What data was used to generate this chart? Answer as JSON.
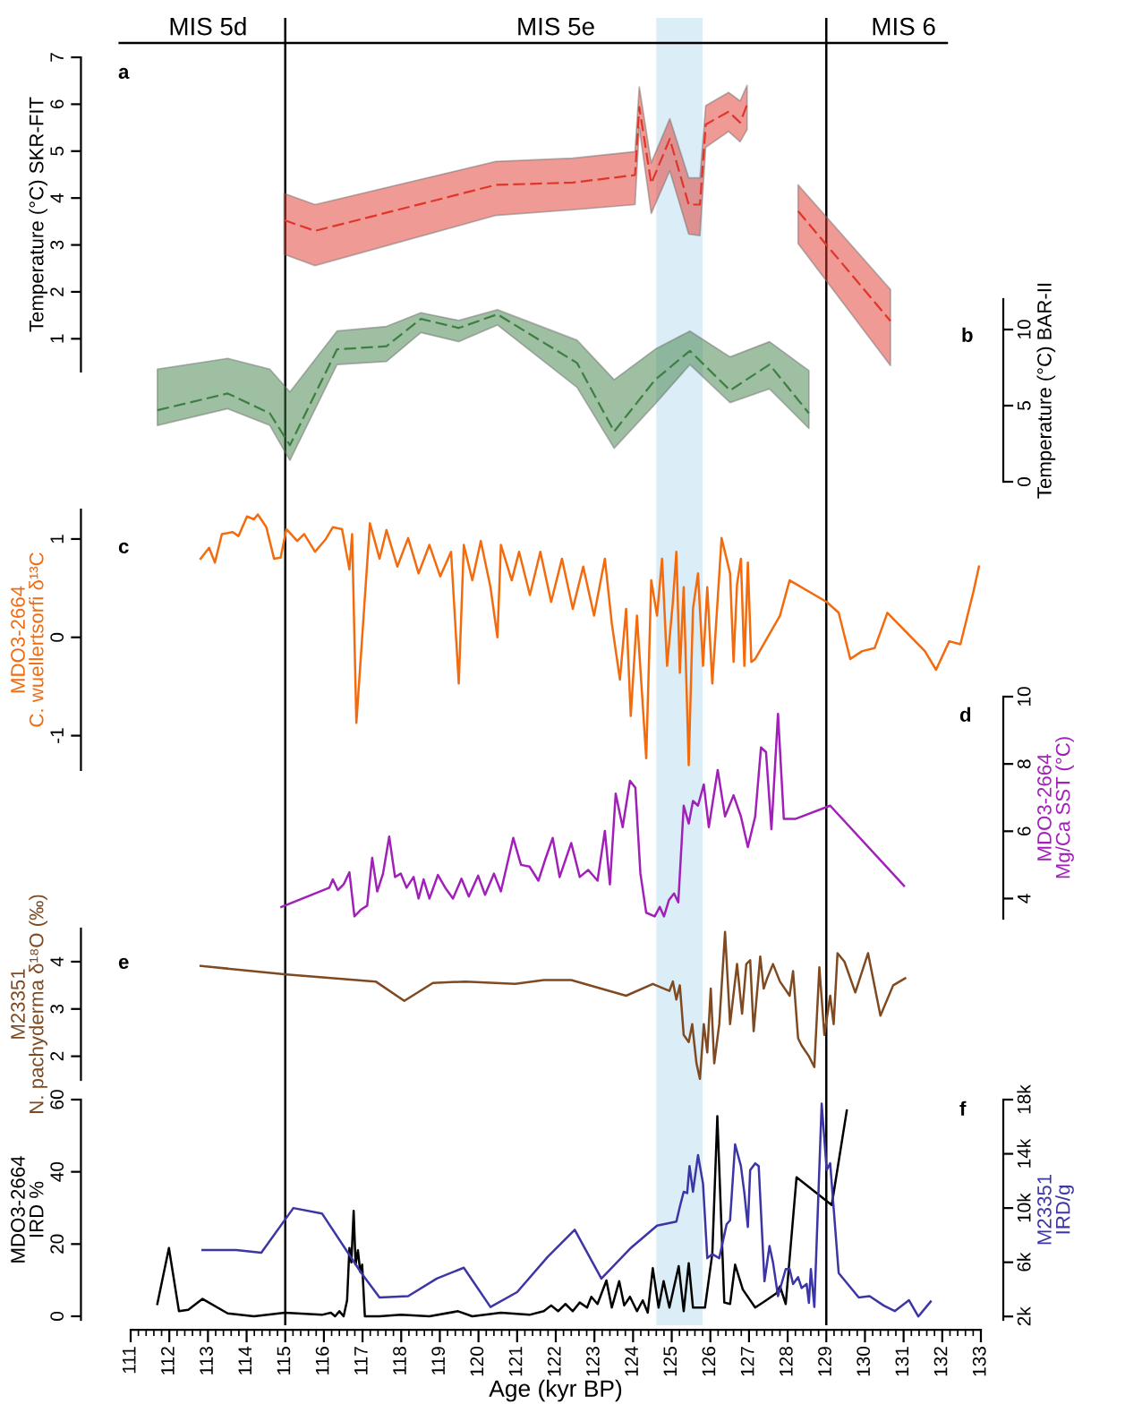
{
  "chart_data": [
    {
      "type": "line",
      "ylabel": "Temperature (°C) SKR-FIT",
      "annotations": [
        "a",
        "MIS 5d",
        "MIS 5e",
        "MIS 6"
      ],
      "xlim": [
        111,
        133
      ],
      "ylim": [
        0.3,
        7
      ],
      "yticks": [
        1,
        2,
        3,
        4,
        5,
        6,
        7
      ],
      "tick_labels": "y",
      "legend": false,
      "grid": false,
      "marker": "none",
      "line_style": "dashed",
      "ref_lines": [
        {
          "axis": "x",
          "value": 115,
          "color": "#000000"
        },
        {
          "axis": "x",
          "value": 129,
          "color": "#000000"
        }
      ],
      "bands": [
        {
          "axis": "x",
          "from": 124.6,
          "to": 125.8,
          "color": "#dbedf7"
        }
      ],
      "series": [
        {
          "color": "#e0352b",
          "x": [
            114.97,
            115.77,
            120.45,
            122.44,
            124.05,
            124.16,
            124.47,
            124.95,
            125.44,
            125.73,
            125.88,
            126.47,
            126.77,
            126.95,
            127.6,
            128.27,
            130.66
          ],
          "values": [
            3.53,
            3.3,
            4.28,
            4.33,
            4.49,
            5.94,
            4.31,
            5.26,
            3.86,
            3.86,
            5.57,
            5.84,
            5.61,
            5.99,
            null,
            3.72,
            1.38
          ],
          "lower": [
            2.8,
            2.56,
            3.63,
            3.75,
            3.86,
            5.5,
            3.67,
            4.58,
            3.23,
            3.2,
            5.08,
            5.42,
            5.2,
            5.46,
            null,
            3.03,
            0.43
          ],
          "upper": [
            4.1,
            3.86,
            4.78,
            4.85,
            4.99,
            6.37,
            4.75,
            5.69,
            4.43,
            4.43,
            5.97,
            6.25,
            6.07,
            6.4,
            null,
            4.28,
            2.05
          ]
        }
      ]
    },
    {
      "type": "line",
      "ylabel": "Temperature (°C) BAR-II",
      "annotations": [
        "b"
      ],
      "xlim": [
        111,
        133
      ],
      "ylim": [
        0,
        12
      ],
      "yticks": [
        0,
        5,
        10
      ],
      "tick_labels": "y",
      "legend": false,
      "grid": false,
      "marker": "none",
      "line_style": "dashed",
      "series": [
        {
          "color": "#3d7f43",
          "x": [
            111.69,
            113.51,
            114.6,
            115.12,
            116.34,
            117.62,
            118.51,
            119.49,
            120.49,
            122.55,
            123.51,
            124.57,
            125.47,
            126.51,
            127.53,
            128.55
          ],
          "values": [
            4.7,
            5.8,
            4.5,
            2.4,
            8.7,
            8.9,
            10.7,
            10.1,
            11.0,
            7.8,
            3.3,
            6.7,
            8.6,
            6.0,
            7.7,
            4.5
          ],
          "lower": [
            3.7,
            4.8,
            3.7,
            1.4,
            7.7,
            7.9,
            9.8,
            9.2,
            10.3,
            6.2,
            2.2,
            5.1,
            7.7,
            5.2,
            6.1,
            3.5
          ],
          "upper": [
            7.4,
            8.1,
            7.4,
            5.9,
            9.9,
            10.2,
            11.1,
            10.6,
            11.3,
            9.3,
            6.7,
            8.7,
            9.9,
            8.2,
            9.2,
            7.3
          ]
        }
      ]
    },
    {
      "type": "line",
      "ylabel": "MDO3-2664\nC. wuellertsorfi δ¹³C",
      "annotations": [
        "c"
      ],
      "xlim": [
        111,
        133
      ],
      "ylim": [
        -1.35,
        1.3
      ],
      "yticks": [
        -1,
        0,
        1
      ],
      "tick_labels": "y",
      "legend": false,
      "grid": false,
      "marker": "none",
      "line_style": "solid",
      "series": [
        {
          "color": "#f26b0f",
          "x": [
            112.81,
            113.03,
            113.18,
            113.36,
            113.64,
            113.79,
            114.01,
            114.19,
            114.29,
            114.51,
            114.71,
            114.88,
            115.03,
            115.31,
            115.49,
            115.77,
            116.05,
            116.23,
            116.47,
            116.66,
            116.73,
            116.84,
            117.19,
            117.44,
            117.62,
            117.9,
            118.18,
            118.45,
            118.73,
            119.01,
            119.29,
            119.49,
            119.62,
            119.84,
            120.06,
            120.31,
            120.49,
            120.58,
            120.86,
            121.05,
            121.33,
            121.6,
            121.88,
            122.16,
            122.44,
            122.71,
            122.99,
            123.27,
            123.45,
            123.66,
            123.82,
            123.94,
            124.1,
            124.34,
            124.47,
            124.62,
            124.75,
            124.88,
            125.03,
            125.12,
            125.21,
            125.31,
            125.44,
            125.55,
            125.68,
            125.81,
            125.92,
            126.05,
            126.29,
            126.51,
            126.6,
            126.69,
            126.79,
            126.88,
            126.97,
            127.06,
            127.16,
            127.8,
            128.05,
            129.01,
            129.32,
            129.62,
            129.93,
            130.25,
            130.58,
            131.55,
            131.84,
            132.18,
            132.47,
            132.81,
            132.95
          ],
          "values": [
            0.8,
            0.91,
            0.76,
            1.05,
            1.07,
            1.03,
            1.23,
            1.2,
            1.25,
            1.12,
            0.8,
            0.81,
            1.1,
            0.98,
            1.05,
            0.87,
            1.0,
            1.12,
            1.1,
            0.69,
            1.05,
            -0.87,
            1.16,
            0.8,
            1.09,
            0.72,
            1.01,
            0.65,
            0.94,
            0.62,
            0.87,
            -0.47,
            0.94,
            0.58,
            0.98,
            0.51,
            0.0,
            0.94,
            0.58,
            0.87,
            0.43,
            0.87,
            0.36,
            0.8,
            0.29,
            0.72,
            0.22,
            0.8,
            0.14,
            -0.43,
            0.29,
            -0.8,
            0.22,
            -1.23,
            0.58,
            0.22,
            0.8,
            -0.29,
            0.36,
            0.87,
            -0.36,
            0.51,
            -1.3,
            0.29,
            0.65,
            -0.29,
            0.51,
            -0.47,
            1.01,
            0.65,
            -0.25,
            0.54,
            0.8,
            -0.29,
            0.76,
            -0.25,
            -0.22,
            0.22,
            0.58,
            0.36,
            0.25,
            -0.22,
            -0.14,
            -0.11,
            0.25,
            -0.14,
            -0.33,
            -0.04,
            -0.07,
            0.47,
            0.72
          ]
        }
      ]
    },
    {
      "type": "line",
      "ylabel": "MDO3-2664\nMg/Ca SST (°C)",
      "annotations": [
        "d"
      ],
      "xlim": [
        111,
        133
      ],
      "ylim": [
        3.4,
        10
      ],
      "yticks": [
        4,
        6,
        8,
        10
      ],
      "tick_labels": "y",
      "legend": false,
      "grid": false,
      "marker": "none",
      "line_style": "solid",
      "series": [
        {
          "color": "#a020b8",
          "x": [
            114.9,
            116.14,
            116.23,
            116.36,
            116.51,
            116.66,
            116.79,
            116.97,
            117.12,
            117.25,
            117.38,
            117.53,
            117.69,
            117.84,
            117.99,
            118.14,
            118.32,
            118.45,
            118.58,
            118.73,
            118.95,
            119.14,
            119.34,
            119.56,
            119.75,
            119.99,
            120.17,
            120.4,
            120.58,
            120.9,
            121.1,
            121.32,
            121.55,
            121.73,
            121.92,
            122.1,
            122.4,
            122.62,
            122.84,
            123.08,
            123.27,
            123.4,
            123.55,
            123.73,
            123.92,
            124.06,
            124.19,
            124.34,
            124.56,
            124.69,
            124.8,
            124.93,
            125.06,
            125.17,
            125.31,
            125.44,
            125.55,
            125.68,
            125.83,
            125.96,
            126.19,
            126.38,
            126.6,
            126.79,
            126.97,
            127.16,
            127.31,
            127.44,
            127.58,
            127.75,
            127.9,
            128.21,
            129.1,
            131.01
          ],
          "values": [
            3.75,
            4.32,
            4.57,
            4.25,
            4.42,
            4.78,
            3.47,
            3.68,
            3.79,
            5.21,
            4.21,
            4.74,
            5.84,
            4.64,
            4.74,
            4.32,
            4.64,
            4.0,
            4.57,
            4.0,
            4.7,
            4.32,
            4.0,
            4.59,
            4.06,
            4.68,
            4.11,
            4.74,
            4.21,
            5.8,
            5.0,
            4.95,
            4.53,
            5.17,
            5.8,
            4.64,
            5.65,
            4.64,
            4.85,
            4.53,
            6.01,
            4.42,
            7.12,
            6.12,
            7.5,
            7.29,
            4.74,
            3.58,
            3.47,
            3.75,
            3.47,
            3.96,
            4.15,
            3.89,
            6.76,
            6.23,
            6.9,
            6.76,
            7.39,
            6.12,
            7.82,
            6.44,
            7.07,
            6.44,
            5.53,
            6.44,
            8.49,
            8.35,
            6.06,
            9.49,
            6.37,
            6.37,
            6.76,
            4.38
          ]
        }
      ]
    },
    {
      "type": "line",
      "ylabel": "M23351\nN. pachyderma δ¹⁸O (‰)",
      "annotations": [
        "e"
      ],
      "xlim": [
        111,
        133
      ],
      "ylim": [
        1.5,
        4.7
      ],
      "yticks": [
        2,
        3,
        4
      ],
      "tick_labels": "y",
      "legend": false,
      "grid": false,
      "marker": "none",
      "line_style": "solid",
      "series": [
        {
          "color": "#7f4a21",
          "x": [
            112.81,
            115.03,
            117.34,
            118.08,
            118.82,
            119.66,
            120.95,
            121.69,
            122.4,
            123.82,
            124.51,
            124.94,
            125.03,
            125.12,
            125.21,
            125.31,
            125.44,
            125.53,
            125.64,
            125.73,
            125.83,
            125.92,
            126.01,
            126.1,
            126.23,
            126.38,
            126.51,
            126.69,
            126.82,
            126.93,
            127.03,
            127.12,
            127.29,
            127.38,
            127.47,
            127.62,
            127.8,
            128.05,
            128.14,
            128.27,
            128.36,
            128.55,
            128.69,
            128.82,
            128.95,
            129.1,
            129.19,
            129.29,
            129.47,
            129.75,
            130.08,
            130.4,
            130.73,
            131.04
          ],
          "values": [
            3.91,
            3.73,
            3.58,
            3.17,
            3.55,
            3.58,
            3.53,
            3.61,
            3.61,
            3.28,
            3.53,
            3.38,
            3.58,
            3.2,
            3.5,
            2.45,
            2.3,
            2.68,
            1.85,
            1.52,
            2.68,
            2.08,
            3.43,
            1.85,
            2.68,
            4.63,
            2.68,
            3.95,
            2.9,
            3.95,
            4.03,
            2.53,
            4.11,
            3.43,
            3.65,
            3.95,
            3.58,
            3.28,
            3.8,
            2.38,
            2.23,
            2.0,
            1.77,
            3.88,
            2.45,
            3.28,
            2.68,
            4.18,
            4.0,
            3.35,
            4.18,
            2.86,
            3.5,
            3.65
          ]
        }
      ]
    },
    {
      "type": "line",
      "xlabel": "Age (kyr BP)",
      "ylabel": "MDO3-2664\nIRD %",
      "y2label": "M23351\nIRD/g",
      "annotations": [
        "f"
      ],
      "xlim": [
        111,
        133
      ],
      "xticks": [
        111,
        112,
        113,
        114,
        115,
        116,
        117,
        118,
        119,
        120,
        121,
        122,
        123,
        124,
        125,
        126,
        127,
        128,
        129,
        130,
        131,
        132,
        133
      ],
      "ylim": [
        -1,
        60
      ],
      "yticks": [
        0,
        20,
        40,
        60
      ],
      "y2lim": [
        1750,
        18000
      ],
      "y2ticks": [
        {
          "value": 2000,
          "label": "2k"
        },
        {
          "value": 6000,
          "label": "6k"
        },
        {
          "value": 10000,
          "label": "10k"
        },
        {
          "value": 14000,
          "label": "14k"
        },
        {
          "value": 18000,
          "label": "18k"
        }
      ],
      "legend": false,
      "grid": false,
      "marker": "none",
      "line_style": "solid",
      "series": [
        {
          "color": "#000000",
          "x": [
            111.69,
            111.99,
            112.25,
            112.49,
            112.86,
            113.51,
            114.19,
            114.99,
            115.95,
            116.18,
            116.29,
            116.4,
            116.51,
            116.6,
            116.66,
            116.71,
            116.77,
            116.82,
            116.88,
            116.94,
            116.99,
            117.06,
            117.44,
            117.99,
            118.73,
            119.47,
            119.84,
            120.58,
            121.32,
            121.69,
            121.88,
            122.06,
            122.25,
            122.44,
            122.62,
            122.81,
            122.92,
            123.08,
            123.31,
            123.45,
            123.64,
            123.77,
            123.92,
            124.1,
            124.25,
            124.38,
            124.51,
            124.66,
            124.79,
            124.94,
            125.18,
            125.31,
            125.44,
            125.55,
            125.86,
            126.05,
            126.18,
            126.36,
            126.51,
            126.64,
            126.84,
            127.16,
            127.44,
            127.71,
            127.8,
            127.95,
            128.23,
            129.14,
            129.53
          ],
          "values": [
            3.4,
            18.9,
            1.4,
            1.8,
            4.8,
            0.8,
            0,
            1.0,
            0.4,
            1.0,
            0,
            1.4,
            0,
            4.4,
            18.9,
            14.9,
            29.2,
            14.3,
            18.3,
            12.3,
            14.3,
            0,
            0,
            0.4,
            0,
            1.4,
            0,
            1.0,
            0.4,
            1.4,
            3.0,
            1.4,
            3.4,
            1.4,
            3.8,
            2.4,
            5.4,
            3.4,
            9.9,
            2.4,
            9.7,
            3.0,
            5.4,
            1.4,
            4.4,
            1.0,
            13.3,
            2.4,
            9.7,
            2.4,
            13.9,
            1.4,
            14.7,
            2.4,
            2.4,
            17.3,
            55.4,
            3.8,
            3.4,
            14.3,
            7.4,
            2.4,
            4.4,
            6.4,
            8.3,
            3.4,
            38.5,
            30.8,
            57.0
          ]
        },
        {
          "color": "#3c35a6",
          "axis": "y2",
          "x": [
            112.86,
            113.73,
            114.38,
            115.21,
            115.95,
            116.97,
            117.44,
            118.18,
            118.92,
            119.62,
            120.31,
            121.0,
            121.79,
            122.49,
            123.18,
            123.92,
            124.62,
            125.12,
            125.21,
            125.31,
            125.4,
            125.46,
            125.55,
            125.68,
            125.81,
            125.92,
            126.05,
            126.23,
            126.42,
            126.51,
            126.64,
            126.79,
            126.88,
            126.97,
            127.03,
            127.16,
            127.25,
            127.4,
            127.53,
            127.62,
            127.75,
            127.95,
            128.05,
            128.14,
            128.27,
            128.36,
            128.49,
            128.55,
            128.6,
            128.69,
            128.88,
            129.01,
            129.1,
            129.32,
            129.84,
            130.12,
            130.49,
            130.77,
            131.14,
            131.38,
            131.7
          ],
          "values": [
            6900,
            6900,
            6700,
            10000,
            9600,
            5200,
            3400,
            3500,
            4800,
            5600,
            2700,
            3800,
            6400,
            8400,
            4800,
            7000,
            8700,
            9000,
            10100,
            11200,
            11100,
            13100,
            11200,
            13900,
            11800,
            6300,
            6600,
            6300,
            8800,
            9100,
            14700,
            13100,
            11100,
            8600,
            12800,
            13300,
            13100,
            4600,
            7200,
            6000,
            3500,
            5500,
            5500,
            4400,
            4900,
            4100,
            4400,
            3000,
            5500,
            2700,
            17700,
            12800,
            13300,
            5200,
            3400,
            3500,
            2800,
            2400,
            3200,
            2000,
            3100
          ]
        }
      ]
    }
  ]
}
